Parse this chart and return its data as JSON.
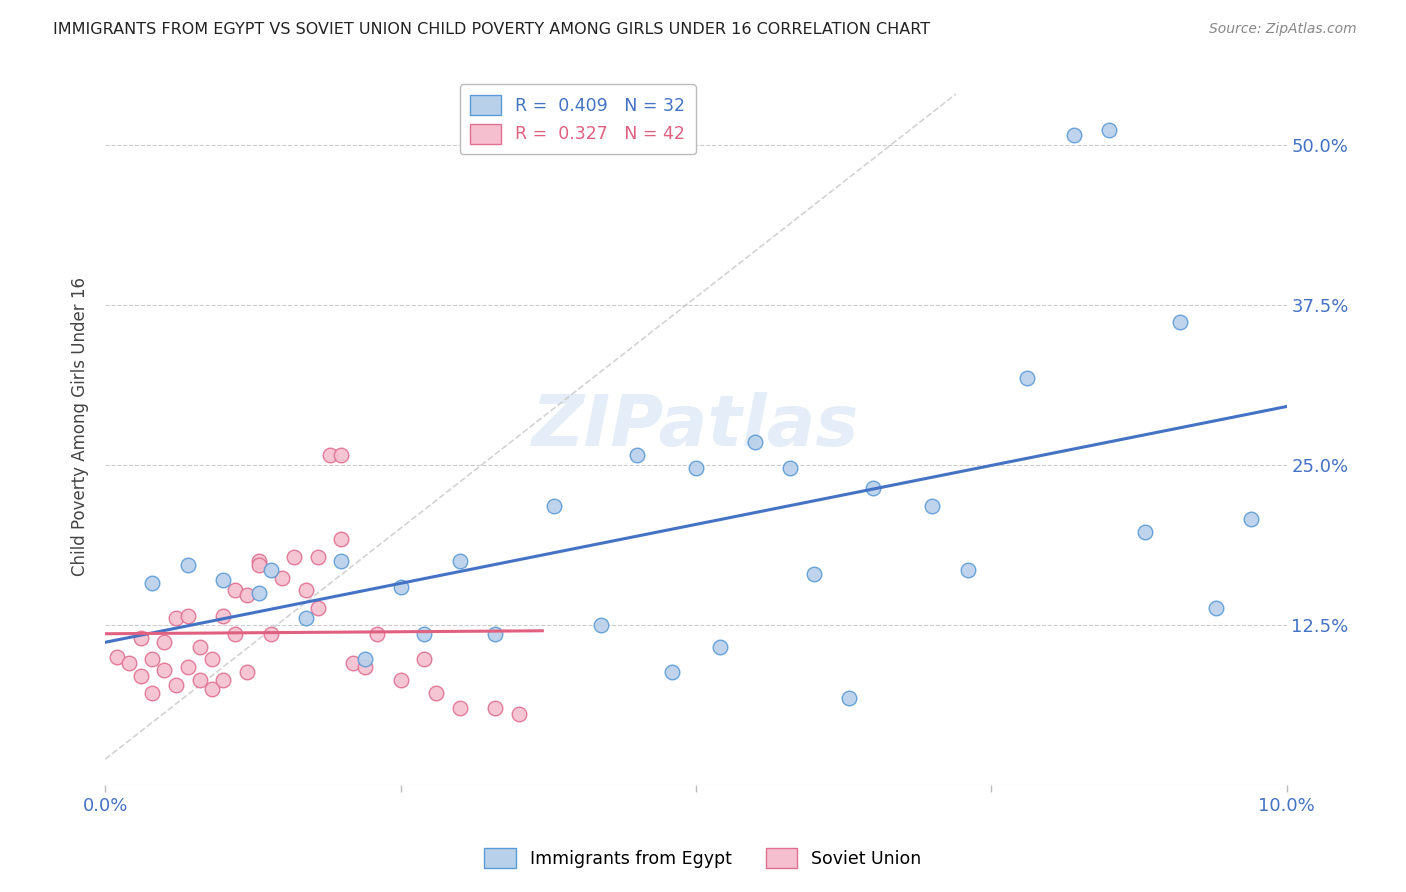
{
  "title": "IMMIGRANTS FROM EGYPT VS SOVIET UNION CHILD POVERTY AMONG GIRLS UNDER 16 CORRELATION CHART",
  "source": "Source: ZipAtlas.com",
  "ylabel": "Child Poverty Among Girls Under 16",
  "xlim": [
    0.0,
    0.1
  ],
  "ylim": [
    0.0,
    0.56
  ],
  "ytick_positions": [
    0.125,
    0.25,
    0.375,
    0.5
  ],
  "ytick_labels": [
    "12.5%",
    "25.0%",
    "37.5%",
    "50.0%"
  ],
  "xtick_positions": [
    0.0,
    0.025,
    0.05,
    0.075,
    0.1
  ],
  "xtick_labels": [
    "0.0%",
    "",
    "",
    "",
    "10.0%"
  ],
  "egypt_color": "#b8d0ea",
  "soviet_color": "#f5bfcf",
  "egypt_edge_color": "#5b9bd5",
  "soviet_edge_color": "#e07090",
  "egypt_line_color": "#4472c4",
  "soviet_line_color": "#e06080",
  "diagonal_color": "#c8c8c8",
  "egypt_R": 0.409,
  "egypt_N": 32,
  "soviet_R": 0.327,
  "soviet_N": 42,
  "marker_size": 110,
  "background_color": "#ffffff",
  "grid_color": "#cccccc",
  "title_color": "#222222",
  "tick_label_color": "#4472c4",
  "watermark": "ZIPatlas",
  "egypt_x": [
    0.004,
    0.007,
    0.01,
    0.013,
    0.014,
    0.017,
    0.02,
    0.022,
    0.025,
    0.027,
    0.03,
    0.033,
    0.038,
    0.042,
    0.045,
    0.048,
    0.05,
    0.052,
    0.055,
    0.058,
    0.06,
    0.063,
    0.065,
    0.07,
    0.073,
    0.078,
    0.082,
    0.085,
    0.088,
    0.091,
    0.094,
    0.097
  ],
  "egypt_y": [
    0.158,
    0.172,
    0.16,
    0.15,
    0.168,
    0.13,
    0.175,
    0.098,
    0.155,
    0.118,
    0.175,
    0.118,
    0.218,
    0.125,
    0.258,
    0.088,
    0.248,
    0.108,
    0.268,
    0.248,
    0.165,
    0.068,
    0.232,
    0.218,
    0.168,
    0.318,
    0.508,
    0.512,
    0.198,
    0.362,
    0.138,
    0.208
  ],
  "soviet_x": [
    0.001,
    0.002,
    0.003,
    0.003,
    0.004,
    0.004,
    0.005,
    0.005,
    0.006,
    0.006,
    0.007,
    0.007,
    0.008,
    0.008,
    0.009,
    0.009,
    0.01,
    0.01,
    0.011,
    0.011,
    0.012,
    0.012,
    0.013,
    0.013,
    0.014,
    0.015,
    0.016,
    0.017,
    0.018,
    0.018,
    0.019,
    0.02,
    0.02,
    0.021,
    0.022,
    0.023,
    0.025,
    0.027,
    0.028,
    0.03,
    0.033,
    0.035
  ],
  "soviet_y": [
    0.1,
    0.095,
    0.085,
    0.115,
    0.098,
    0.072,
    0.112,
    0.09,
    0.13,
    0.078,
    0.092,
    0.132,
    0.082,
    0.108,
    0.098,
    0.075,
    0.132,
    0.082,
    0.152,
    0.118,
    0.148,
    0.088,
    0.175,
    0.172,
    0.118,
    0.162,
    0.178,
    0.152,
    0.178,
    0.138,
    0.258,
    0.258,
    0.192,
    0.095,
    0.092,
    0.118,
    0.082,
    0.098,
    0.072,
    0.06,
    0.06,
    0.055
  ]
}
